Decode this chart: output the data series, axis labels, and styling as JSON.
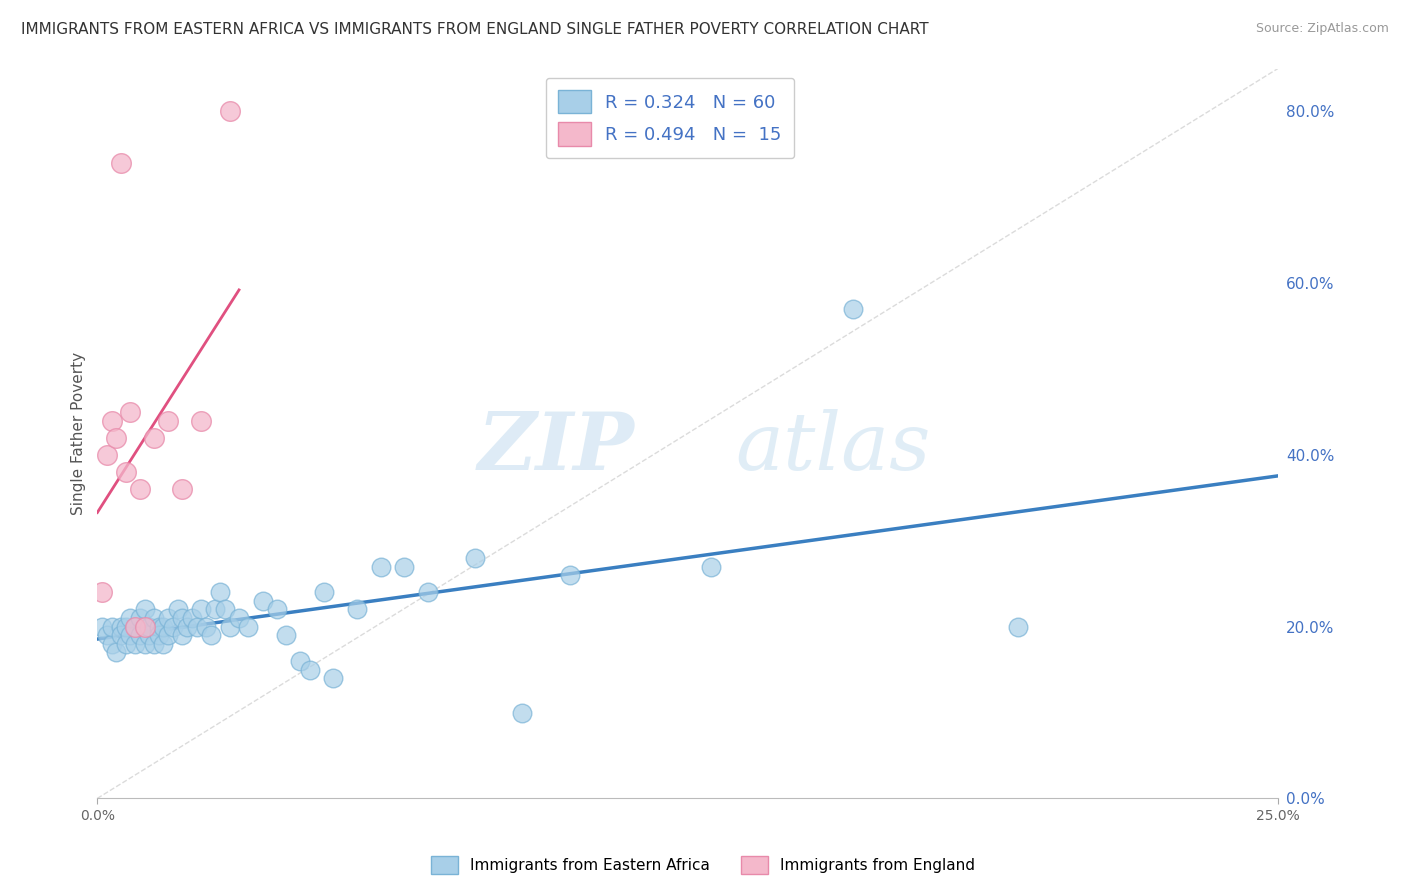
{
  "title": "IMMIGRANTS FROM EASTERN AFRICA VS IMMIGRANTS FROM ENGLAND SINGLE FATHER POVERTY CORRELATION CHART",
  "source": "Source: ZipAtlas.com",
  "ylabel": "Single Father Poverty",
  "legend1_label": "Immigrants from Eastern Africa",
  "legend2_label": "Immigrants from England",
  "r1": 0.324,
  "n1": 60,
  "r2": 0.494,
  "n2": 15,
  "xlim": [
    0.0,
    0.25
  ],
  "ylim": [
    0.0,
    0.85
  ],
  "yticks": [
    0.0,
    0.2,
    0.4,
    0.6,
    0.8
  ],
  "yticklabels": [
    "0.0%",
    "20.0%",
    "40.0%",
    "60.0%",
    "80.0%"
  ],
  "xticks": [
    0.0,
    0.25
  ],
  "xticklabels": [
    "0.0%",
    "25.0%"
  ],
  "color_blue": "#a8cfe8",
  "color_pink": "#f4b8cb",
  "edge_blue": "#7ab3d6",
  "edge_pink": "#e88aaa",
  "line_blue": "#3a7fc1",
  "line_pink": "#e05080",
  "line_dashed_color": "#cccccc",
  "watermark_zip_color": "#d5eaf7",
  "watermark_atlas_color": "#d5eaf7",
  "blue_scatter_x": [
    0.001,
    0.002,
    0.003,
    0.003,
    0.004,
    0.005,
    0.005,
    0.006,
    0.006,
    0.007,
    0.007,
    0.008,
    0.008,
    0.009,
    0.009,
    0.01,
    0.01,
    0.011,
    0.011,
    0.012,
    0.012,
    0.013,
    0.013,
    0.014,
    0.014,
    0.015,
    0.015,
    0.016,
    0.017,
    0.018,
    0.018,
    0.019,
    0.02,
    0.021,
    0.022,
    0.023,
    0.024,
    0.025,
    0.026,
    0.027,
    0.028,
    0.03,
    0.032,
    0.035,
    0.038,
    0.04,
    0.043,
    0.045,
    0.048,
    0.05,
    0.055,
    0.06,
    0.065,
    0.07,
    0.08,
    0.09,
    0.1,
    0.13,
    0.16,
    0.195
  ],
  "blue_scatter_y": [
    0.2,
    0.19,
    0.18,
    0.2,
    0.17,
    0.2,
    0.19,
    0.18,
    0.2,
    0.19,
    0.21,
    0.18,
    0.2,
    0.19,
    0.21,
    0.18,
    0.22,
    0.19,
    0.2,
    0.18,
    0.21,
    0.2,
    0.19,
    0.18,
    0.2,
    0.19,
    0.21,
    0.2,
    0.22,
    0.21,
    0.19,
    0.2,
    0.21,
    0.2,
    0.22,
    0.2,
    0.19,
    0.22,
    0.24,
    0.22,
    0.2,
    0.21,
    0.2,
    0.23,
    0.22,
    0.19,
    0.16,
    0.15,
    0.24,
    0.14,
    0.22,
    0.27,
    0.27,
    0.24,
    0.28,
    0.1,
    0.26,
    0.27,
    0.57,
    0.2
  ],
  "pink_scatter_x": [
    0.001,
    0.002,
    0.003,
    0.004,
    0.005,
    0.006,
    0.007,
    0.008,
    0.009,
    0.01,
    0.012,
    0.015,
    0.018,
    0.022,
    0.028
  ],
  "pink_scatter_y": [
    0.24,
    0.4,
    0.44,
    0.42,
    0.74,
    0.38,
    0.45,
    0.2,
    0.36,
    0.2,
    0.42,
    0.44,
    0.36,
    0.44,
    0.8
  ]
}
